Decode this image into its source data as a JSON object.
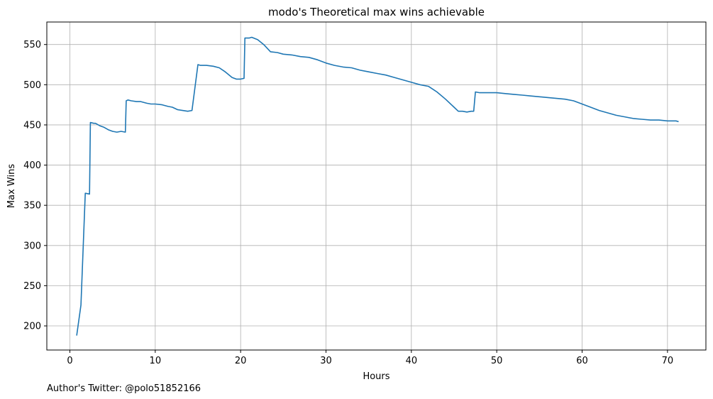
{
  "chart_data": {
    "type": "line",
    "title": "modo's Theoretical max wins achievable",
    "xlabel": "Hours",
    "ylabel": "Max Wins",
    "xlim": [
      -2.7,
      74.5
    ],
    "ylim": [
      170,
      578
    ],
    "xticks": [
      0,
      10,
      20,
      30,
      40,
      50,
      60,
      70
    ],
    "yticks": [
      200,
      250,
      300,
      350,
      400,
      450,
      500,
      550
    ],
    "grid": true,
    "series": [
      {
        "color": "#1f77b4",
        "x": [
          0.8,
          1.3,
          1.8,
          2.3,
          2.4,
          2.8,
          3.0,
          3.5,
          4.0,
          4.5,
          5.0,
          5.5,
          6.0,
          6.5,
          6.6,
          6.8,
          7.2,
          7.8,
          8.3,
          9.0,
          9.5,
          10.0,
          10.8,
          11.5,
          12.0,
          12.6,
          13.2,
          13.8,
          14.3,
          15.0,
          15.3,
          16.0,
          16.8,
          17.5,
          18.2,
          19.0,
          19.5,
          20.0,
          20.4,
          20.5,
          21.0,
          21.3,
          22.0,
          22.7,
          23.5,
          24.3,
          25.0,
          26.0,
          27.0,
          28.0,
          29.0,
          30.0,
          31.0,
          32.0,
          33.0,
          34.0,
          35.0,
          36.0,
          37.0,
          38.0,
          39.0,
          40.0,
          41.0,
          42.0,
          43.0,
          44.0,
          45.0,
          45.5,
          46.0,
          46.5,
          47.0,
          47.3,
          47.5,
          48.0,
          49.0,
          50.0,
          51.0,
          52.0,
          53.0,
          54.0,
          55.0,
          56.0,
          57.0,
          58.0,
          59.0,
          60.0,
          61.0,
          62.0,
          63.0,
          64.0,
          65.0,
          66.0,
          67.0,
          68.0,
          69.0,
          70.0,
          71.0,
          71.3
        ],
        "y": [
          188,
          226,
          365,
          364,
          453,
          452,
          452,
          449,
          447,
          444,
          442,
          441,
          442,
          441,
          480,
          481,
          480,
          479,
          479,
          477,
          476,
          476,
          475,
          473,
          472,
          469,
          468,
          467,
          468,
          525,
          524,
          524,
          523,
          521,
          516,
          509,
          507,
          507,
          508,
          558,
          558,
          559,
          556,
          550,
          541,
          540,
          538,
          537,
          535,
          534,
          531,
          527,
          524,
          522,
          521,
          518,
          516,
          514,
          512,
          509,
          506,
          503,
          500,
          498,
          491,
          482,
          472,
          467,
          467,
          466,
          467,
          467,
          491,
          490,
          490,
          490,
          489,
          488,
          487,
          486,
          485,
          484,
          483,
          482,
          480,
          476,
          472,
          468,
          465,
          462,
          460,
          458,
          457,
          456,
          456,
          455,
          455,
          454
        ]
      }
    ],
    "annotations": [
      {
        "text": "Author's Twitter: @polo51852166"
      }
    ]
  }
}
